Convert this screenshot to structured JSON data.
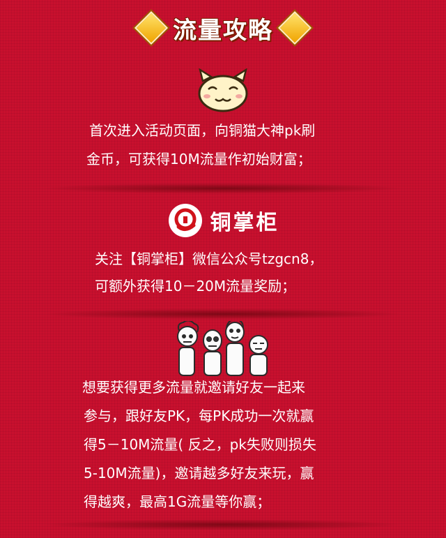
{
  "header": {
    "title": "流量攻略"
  },
  "section1": {
    "lines": [
      "首次进入活动页面，向铜猫大神pk刷",
      "金币，可获得10M流量作初始财富；"
    ]
  },
  "section2": {
    "brand_name": "铜掌柜",
    "lines": [
      "关注【铜掌柜】微信公众号tzgcn8，",
      "可额外获得10－20M流量奖励；"
    ]
  },
  "section3": {
    "lines": [
      "想要获得更多流量就邀请好友一起来",
      "参与，跟好友PK，每PK成功一次就赢",
      "得5－10M流量( 反之，pk失败则损失",
      "5-10M流量)，邀请越多好友来玩，赢",
      "得越爽，最高1G流量等你赢；"
    ]
  },
  "icons": [
    "cat-face-icon",
    "tongzhanggui-logo-icon",
    "meme-faces-icon"
  ]
}
